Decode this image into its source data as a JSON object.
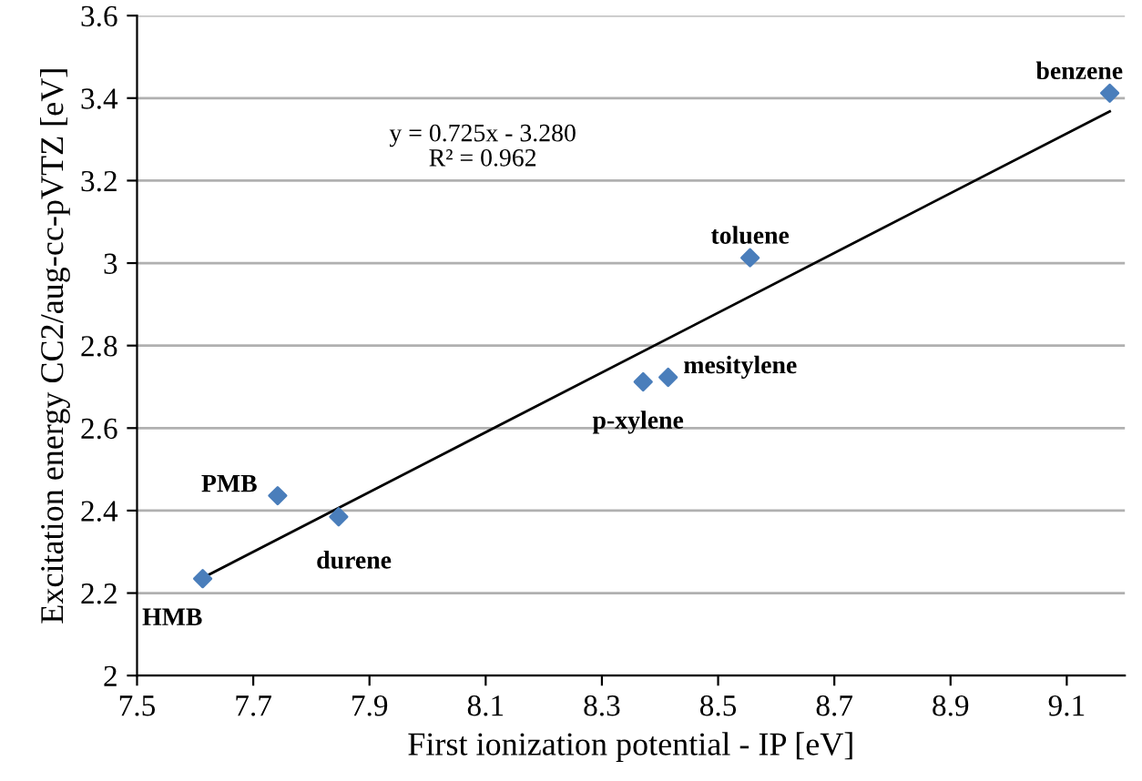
{
  "chart_data": {
    "type": "scatter",
    "xlabel": "First ionization potential - IP [eV]",
    "ylabel": "Excitation energy CC2/aug-cc-pVTZ [eV]",
    "series": [
      {
        "color": "#4a7ebb",
        "marker": "diamond",
        "x": [
          7.613,
          7.742,
          7.847,
          8.371,
          8.414,
          8.555,
          9.174
        ],
        "values": [
          2.235,
          2.436,
          2.385,
          2.712,
          2.723,
          3.013,
          3.412
        ]
      },
      {
        "type": "line",
        "color": "#000000",
        "marker": "none",
        "line_style": "solid",
        "x": [
          7.613,
          9.174
        ],
        "values": [
          2.237,
          3.368
        ]
      }
    ],
    "annotations": [
      {
        "text": "HMB",
        "x": 7.613,
        "y": 2.235
      },
      {
        "text": "PMB",
        "x": 7.742,
        "y": 2.436
      },
      {
        "text": "durene",
        "x": 7.847,
        "y": 2.385
      },
      {
        "text": "p-xylene",
        "x": 8.371,
        "y": 2.712
      },
      {
        "text": "mesitylene",
        "x": 8.414,
        "y": 2.723
      },
      {
        "text": "toluene",
        "x": 8.555,
        "y": 3.013
      },
      {
        "text": "benzene",
        "x": 9.174,
        "y": 3.412
      },
      "y = 0.725x - 3.280\nR² = 0.962"
    ],
    "xlim": [
      7.5,
      9.2
    ],
    "xticks": [
      7.5,
      7.7,
      7.9,
      8.1,
      8.3,
      8.5,
      8.7,
      8.9,
      9.1
    ],
    "ylim": [
      2,
      3.6
    ],
    "yticks": [
      2,
      2.2,
      2.4,
      2.6,
      2.8,
      3,
      3.2,
      3.4,
      3.6
    ],
    "grid": "y",
    "legend": false
  }
}
